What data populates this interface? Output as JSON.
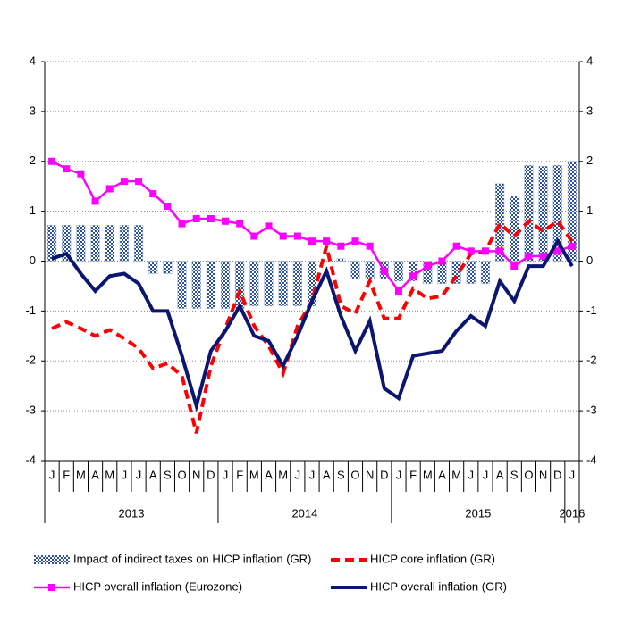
{
  "chart_data": {
    "type": "bar",
    "categories": [
      "J",
      "F",
      "M",
      "A",
      "M",
      "J",
      "J",
      "A",
      "S",
      "O",
      "N",
      "D",
      "J",
      "F",
      "M",
      "A",
      "M",
      "J",
      "J",
      "A",
      "S",
      "O",
      "N",
      "D",
      "J",
      "F",
      "M",
      "A",
      "M",
      "J",
      "J",
      "A",
      "S",
      "O",
      "N",
      "D",
      "J"
    ],
    "years": [
      "2013",
      "2014",
      "2015",
      "2016"
    ],
    "ylim": [
      -4,
      4
    ],
    "yticks": [
      -4,
      -3,
      -2,
      -1,
      0,
      1,
      2,
      3,
      4
    ],
    "y2lim": [
      -4,
      4
    ],
    "y2ticks": [
      -4,
      -3,
      -2,
      -1,
      0,
      1,
      2,
      3,
      4
    ],
    "grid": true,
    "series": [
      {
        "name": "Impact of indirect taxes on HICP inflation (GR)",
        "type": "bar",
        "color": "#2a4f9e",
        "values": [
          0.72,
          0.72,
          0.72,
          0.72,
          0.72,
          0.72,
          0.72,
          -0.25,
          -0.25,
          -0.95,
          -0.95,
          -0.95,
          -0.95,
          -0.95,
          -0.9,
          -0.9,
          -0.9,
          -0.9,
          -0.9,
          0.0,
          0.05,
          -0.35,
          -0.35,
          -0.35,
          -0.4,
          -0.4,
          -0.45,
          -0.45,
          -0.45,
          -0.45,
          -0.45,
          1.55,
          1.3,
          1.92,
          1.9,
          1.92,
          2.0
        ]
      },
      {
        "name": "HICP core inflation (GR)",
        "type": "dashed",
        "color": "#ff0000",
        "values": [
          -1.35,
          -1.22,
          -1.35,
          -1.5,
          -1.38,
          -1.55,
          -1.75,
          -2.15,
          -2.05,
          -2.3,
          -3.45,
          -2.1,
          -1.35,
          -0.6,
          -1.3,
          -1.7,
          -2.25,
          -1.3,
          -0.8,
          0.3,
          -0.9,
          -1.05,
          -0.4,
          -1.15,
          -1.15,
          -0.55,
          -0.75,
          -0.7,
          -0.3,
          0.15,
          0.2,
          0.75,
          0.5,
          0.8,
          0.6,
          0.8,
          0.4
        ]
      },
      {
        "name": "HICP overall inflation (Eurozone)",
        "type": "marker",
        "color": "#ff00ff",
        "values": [
          2.0,
          1.85,
          1.75,
          1.2,
          1.45,
          1.6,
          1.6,
          1.35,
          1.1,
          0.75,
          0.85,
          0.85,
          0.8,
          0.75,
          0.5,
          0.7,
          0.5,
          0.5,
          0.4,
          0.4,
          0.3,
          0.4,
          0.3,
          -0.2,
          -0.6,
          -0.3,
          -0.1,
          0.0,
          0.3,
          0.2,
          0.2,
          0.2,
          -0.1,
          0.1,
          0.1,
          0.2,
          0.3
        ]
      },
      {
        "name": "HICP overall inflation (GR)",
        "type": "line",
        "color": "#0a1670",
        "values": [
          0.05,
          0.15,
          -0.25,
          -0.6,
          -0.3,
          -0.25,
          -0.45,
          -1.0,
          -1.0,
          -1.9,
          -2.9,
          -1.8,
          -1.4,
          -0.9,
          -1.5,
          -1.6,
          -2.1,
          -1.5,
          -0.8,
          -0.2,
          -1.1,
          -1.8,
          -1.2,
          -2.55,
          -2.75,
          -1.9,
          -1.85,
          -1.8,
          -1.4,
          -1.1,
          -1.3,
          -0.4,
          -0.8,
          -0.1,
          -0.1,
          0.4,
          -0.1
        ]
      }
    ]
  }
}
